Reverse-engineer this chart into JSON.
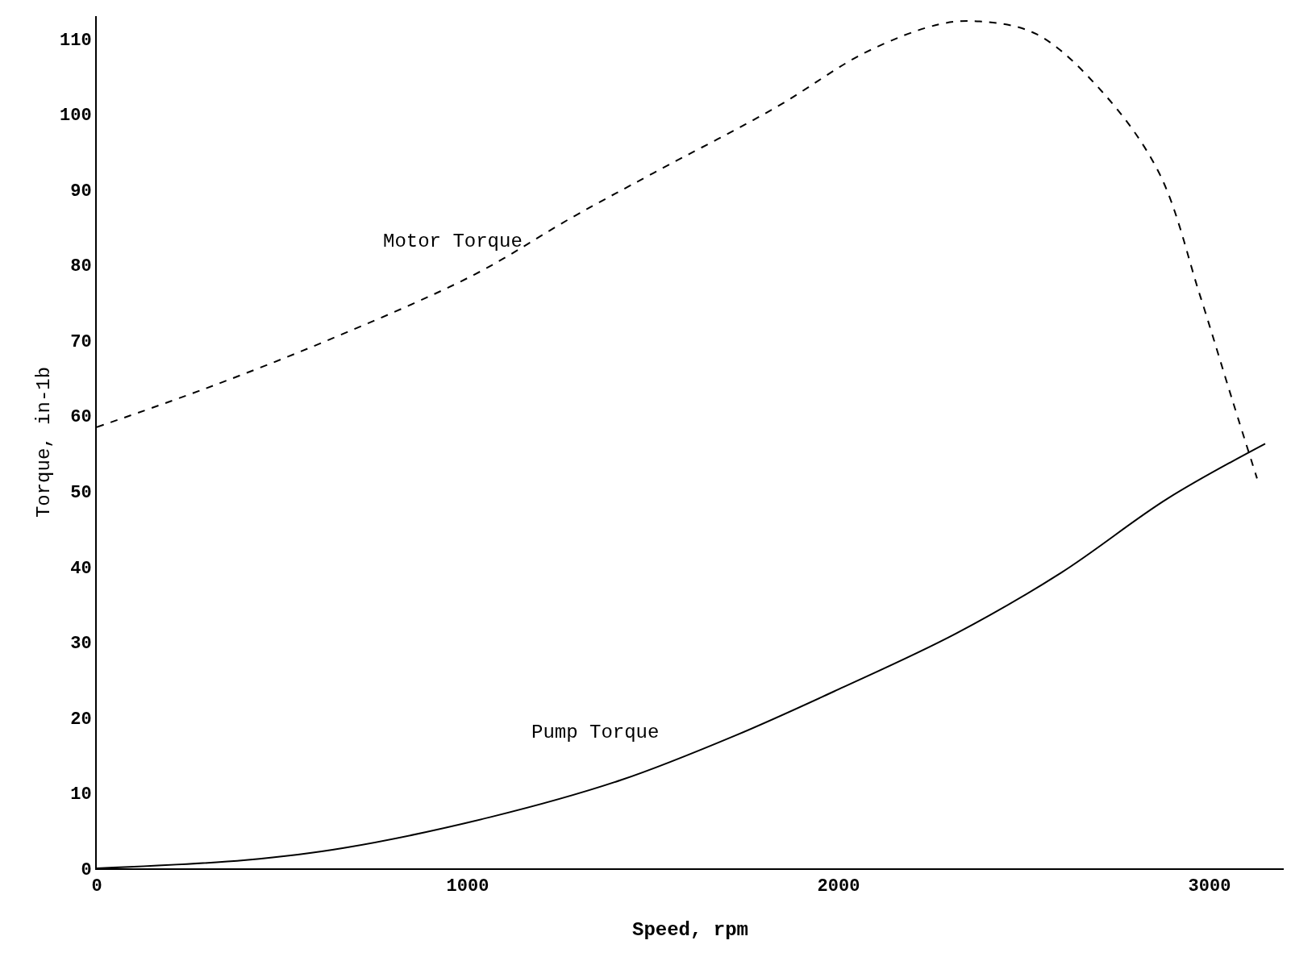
{
  "chart_data": {
    "type": "line",
    "xlabel": "Speed, rpm",
    "ylabel": "Torque, in-1b",
    "xlim": [
      0,
      3200
    ],
    "xticks": [
      0,
      1000,
      2000,
      3000
    ],
    "ylim": [
      0,
      113
    ],
    "yticks": [
      0,
      10,
      20,
      30,
      40,
      50,
      60,
      70,
      80,
      90,
      100,
      110
    ],
    "grid": false,
    "legend": false,
    "marker": "none",
    "series": [
      {
        "color": "#000000",
        "line_style": "dashed",
        "x": [
          0,
          292,
          622,
          1017,
          1281,
          1501,
          1831,
          2073,
          2270,
          2380,
          2534,
          2710,
          2864,
          2974,
          3062,
          3128
        ],
        "values": [
          58.5,
          63.6,
          70,
          78.7,
          86.3,
          92.2,
          100.9,
          108.2,
          111.9,
          112.3,
          110.6,
          103,
          92.2,
          76,
          62,
          51.7
        ]
      },
      {
        "color": "#000000",
        "line_style": "solid",
        "x": [
          0,
          402,
          666,
          1062,
          1413,
          1721,
          2007,
          2315,
          2600,
          2886,
          3150
        ],
        "values": [
          0,
          1.1,
          2.7,
          6.8,
          11.7,
          17.6,
          23.9,
          31.1,
          39.2,
          49,
          56.3
        ]
      }
    ],
    "annotations": [
      "Motor Torque",
      "Pump Torque"
    ]
  }
}
